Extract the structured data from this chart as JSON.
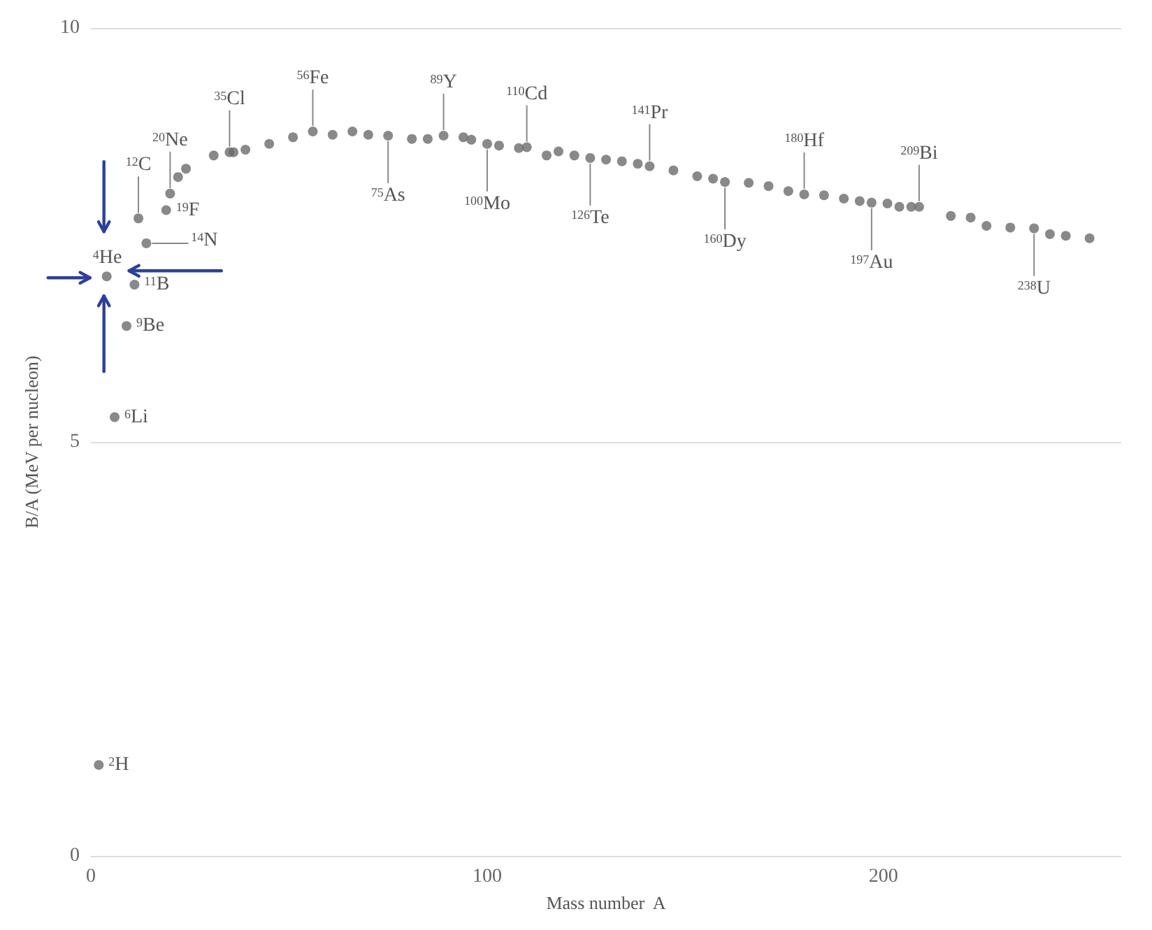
{
  "chart_data": {
    "type": "scatter",
    "xlabel": "Mass number  A",
    "ylabel": "B/A (MeV per nucleon)",
    "xlim": [
      0,
      260
    ],
    "xticks": [
      0,
      100,
      200
    ],
    "ylim": [
      0,
      10
    ],
    "yticks": [
      0,
      5,
      10
    ],
    "grid": "y",
    "marker": "circle",
    "series": [
      {
        "color": "#6b6b6b",
        "x": [
          2,
          4,
          6,
          9,
          11,
          12,
          14,
          19,
          20,
          22,
          24,
          31,
          35,
          36,
          39,
          45,
          51,
          56,
          61,
          66,
          70,
          75,
          81,
          85,
          89,
          94,
          96,
          100,
          103,
          108,
          110,
          115,
          118,
          122,
          126,
          130,
          134,
          138,
          141,
          147,
          153,
          157,
          160,
          166,
          171,
          176,
          180,
          185,
          190,
          194,
          197,
          201,
          204,
          207,
          209,
          217,
          222,
          226,
          232,
          238,
          242,
          246,
          252
        ],
        "values": [
          1.1,
          7.0,
          5.3,
          6.4,
          6.9,
          7.7,
          7.4,
          7.8,
          8.0,
          8.2,
          8.3,
          8.46,
          8.5,
          8.5,
          8.53,
          8.6,
          8.68,
          8.75,
          8.71,
          8.75,
          8.71,
          8.7,
          8.66,
          8.66,
          8.7,
          8.68,
          8.65,
          8.6,
          8.58,
          8.55,
          8.56,
          8.46,
          8.51,
          8.46,
          8.43,
          8.41,
          8.39,
          8.36,
          8.33,
          8.28,
          8.21,
          8.18,
          8.14,
          8.13,
          8.09,
          8.03,
          7.99,
          7.98,
          7.94,
          7.91,
          7.89,
          7.88,
          7.84,
          7.84,
          7.84,
          7.73,
          7.71,
          7.61,
          7.59,
          7.58,
          7.51,
          7.49,
          7.46
        ]
      }
    ],
    "annotations": [
      {
        "text": "$^{2}$H",
        "x": 2,
        "y": 1.1
      },
      {
        "text": "$^{4}$He",
        "x": 4,
        "y": 7.0
      },
      {
        "text": "$^{6}$Li",
        "x": 6,
        "y": 5.3
      },
      {
        "text": "$^{9}$Be",
        "x": 9,
        "y": 6.4
      },
      {
        "text": "$^{11}$B",
        "x": 11,
        "y": 6.9
      },
      {
        "text": "$^{12}$C",
        "x": 12,
        "y": 7.7
      },
      {
        "text": "$^{14}$N",
        "x": 14,
        "y": 7.4
      },
      {
        "text": "$^{19}$F",
        "x": 19,
        "y": 7.8
      },
      {
        "text": "$^{20}$Ne",
        "x": 20,
        "y": 8.0
      },
      {
        "text": "$^{35}$Cl",
        "x": 35,
        "y": 8.5
      },
      {
        "text": "$^{56}$Fe",
        "x": 56,
        "y": 8.75
      },
      {
        "text": "$^{75}$As",
        "x": 75,
        "y": 8.7
      },
      {
        "text": "$^{89}$Y",
        "x": 89,
        "y": 8.7
      },
      {
        "text": "$^{100}$Mo",
        "x": 100,
        "y": 8.6
      },
      {
        "text": "$^{110}$Cd",
        "x": 110,
        "y": 8.56
      },
      {
        "text": "$^{126}$Te",
        "x": 126,
        "y": 8.43
      },
      {
        "text": "$^{141}$Pr",
        "x": 141,
        "y": 8.33
      },
      {
        "text": "$^{160}$Dy",
        "x": 160,
        "y": 8.14
      },
      {
        "text": "$^{180}$Hf",
        "x": 180,
        "y": 7.99
      },
      {
        "text": "$^{197}$Au",
        "x": 197,
        "y": 7.89
      },
      {
        "text": "$^{209}$Bi",
        "x": 209,
        "y": 7.84
      },
      {
        "text": "$^{238}$U",
        "x": 238,
        "y": 7.58
      }
    ]
  }
}
